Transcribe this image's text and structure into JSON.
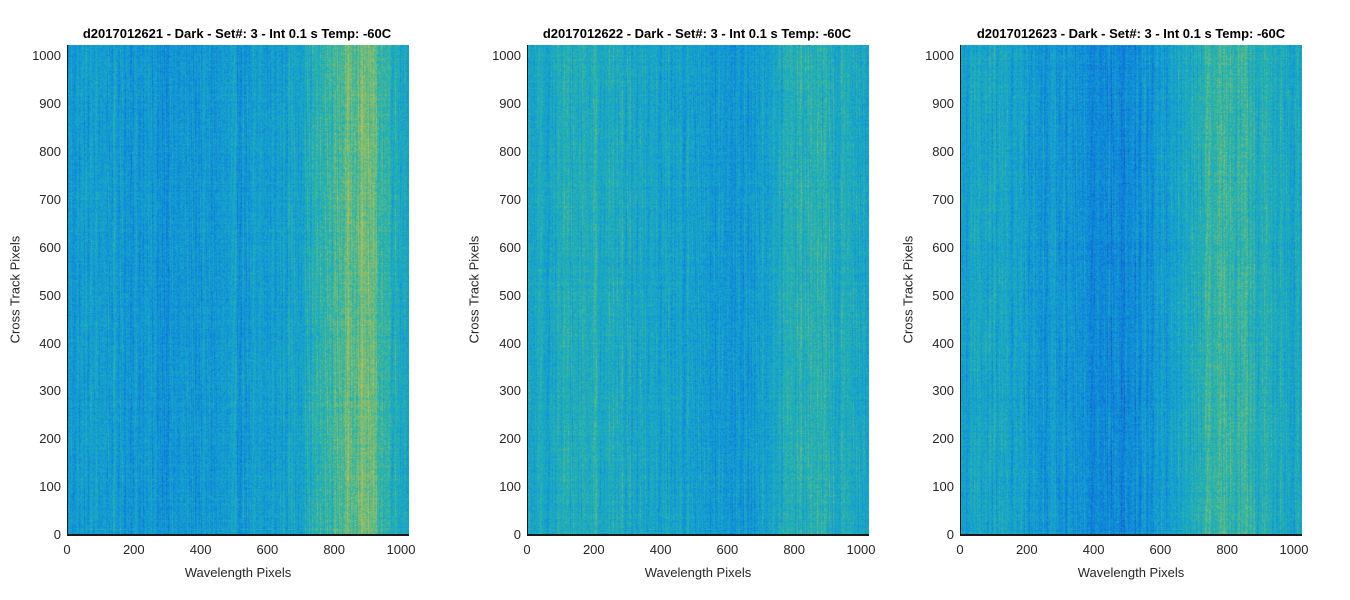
{
  "chart_data": [
    {
      "type": "heatmap",
      "title": "d2017012621 - Dark - Set#: 3 - Int 0.1 s Temp: -60C",
      "xlabel": "Wavelength Pixels",
      "ylabel": "Cross Track Pixels",
      "xlim": [
        0,
        1024
      ],
      "ylim": [
        0,
        1024
      ],
      "xticks": [
        "0",
        "200",
        "400",
        "600",
        "800",
        "1000"
      ],
      "yticks": [
        "0",
        "100",
        "200",
        "300",
        "400",
        "500",
        "600",
        "700",
        "800",
        "900",
        "1000"
      ],
      "colormap": "parula",
      "column_intensity_profile": {
        "x": [
          0,
          100,
          200,
          300,
          400,
          500,
          600,
          700,
          800,
          850,
          900,
          950,
          1024
        ],
        "level": [
          0.38,
          0.4,
          0.37,
          0.35,
          0.36,
          0.37,
          0.38,
          0.45,
          0.58,
          0.66,
          0.68,
          0.55,
          0.45
        ]
      }
    },
    {
      "type": "heatmap",
      "title": "d2017012622 - Dark - Set#: 3 - Int 0.1 s Temp: -60C",
      "xlabel": "Wavelength Pixels",
      "ylabel": "Cross Track Pixels",
      "xlim": [
        0,
        1024
      ],
      "ylim": [
        0,
        1024
      ],
      "xticks": [
        "0",
        "200",
        "400",
        "600",
        "800",
        "1000"
      ],
      "yticks": [
        "0",
        "100",
        "200",
        "300",
        "400",
        "500",
        "600",
        "700",
        "800",
        "900",
        "1000"
      ],
      "colormap": "parula",
      "column_intensity_profile": {
        "x": [
          0,
          100,
          200,
          300,
          400,
          500,
          600,
          700,
          800,
          900,
          1024
        ],
        "level": [
          0.42,
          0.48,
          0.5,
          0.46,
          0.44,
          0.4,
          0.34,
          0.4,
          0.52,
          0.5,
          0.44
        ]
      }
    },
    {
      "type": "heatmap",
      "title": "d2017012623 - Dark - Set#: 3 - Int 0.1 s Temp: -60C",
      "xlabel": "Wavelength Pixels",
      "ylabel": "Cross Track Pixels",
      "xlim": [
        0,
        1024
      ],
      "ylim": [
        0,
        1024
      ],
      "xticks": [
        "0",
        "200",
        "400",
        "600",
        "800",
        "1000"
      ],
      "yticks": [
        "0",
        "100",
        "200",
        "300",
        "400",
        "500",
        "600",
        "700",
        "800",
        "900",
        "1000"
      ],
      "colormap": "parula",
      "column_intensity_profile": {
        "x": [
          0,
          100,
          200,
          300,
          400,
          450,
          500,
          600,
          700,
          800,
          900,
          1024
        ],
        "level": [
          0.42,
          0.44,
          0.4,
          0.36,
          0.32,
          0.28,
          0.3,
          0.38,
          0.48,
          0.58,
          0.5,
          0.44
        ]
      }
    }
  ]
}
